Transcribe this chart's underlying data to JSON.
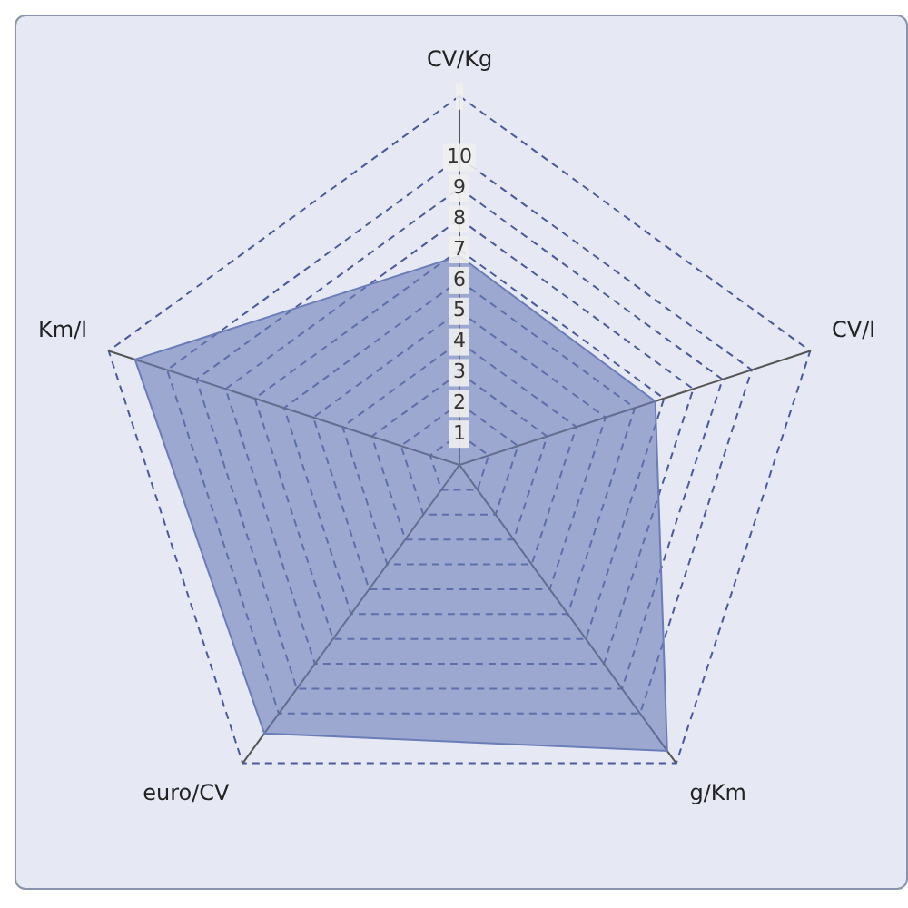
{
  "chart_data": {
    "type": "radar",
    "categories": [
      "CV/Kg",
      "CV/l",
      "g/Km",
      "euro/CV",
      "Km/l"
    ],
    "series": [
      {
        "color": "#6a7db8",
        "values": [
          6.8,
          6.7,
          11.5,
          10.8,
          11.1
        ]
      }
    ],
    "ylim": [
      0,
      12
    ],
    "yticks": [
      1,
      2,
      3,
      4,
      5,
      6,
      7,
      8,
      9,
      10
    ],
    "grid": true,
    "legend": false
  }
}
